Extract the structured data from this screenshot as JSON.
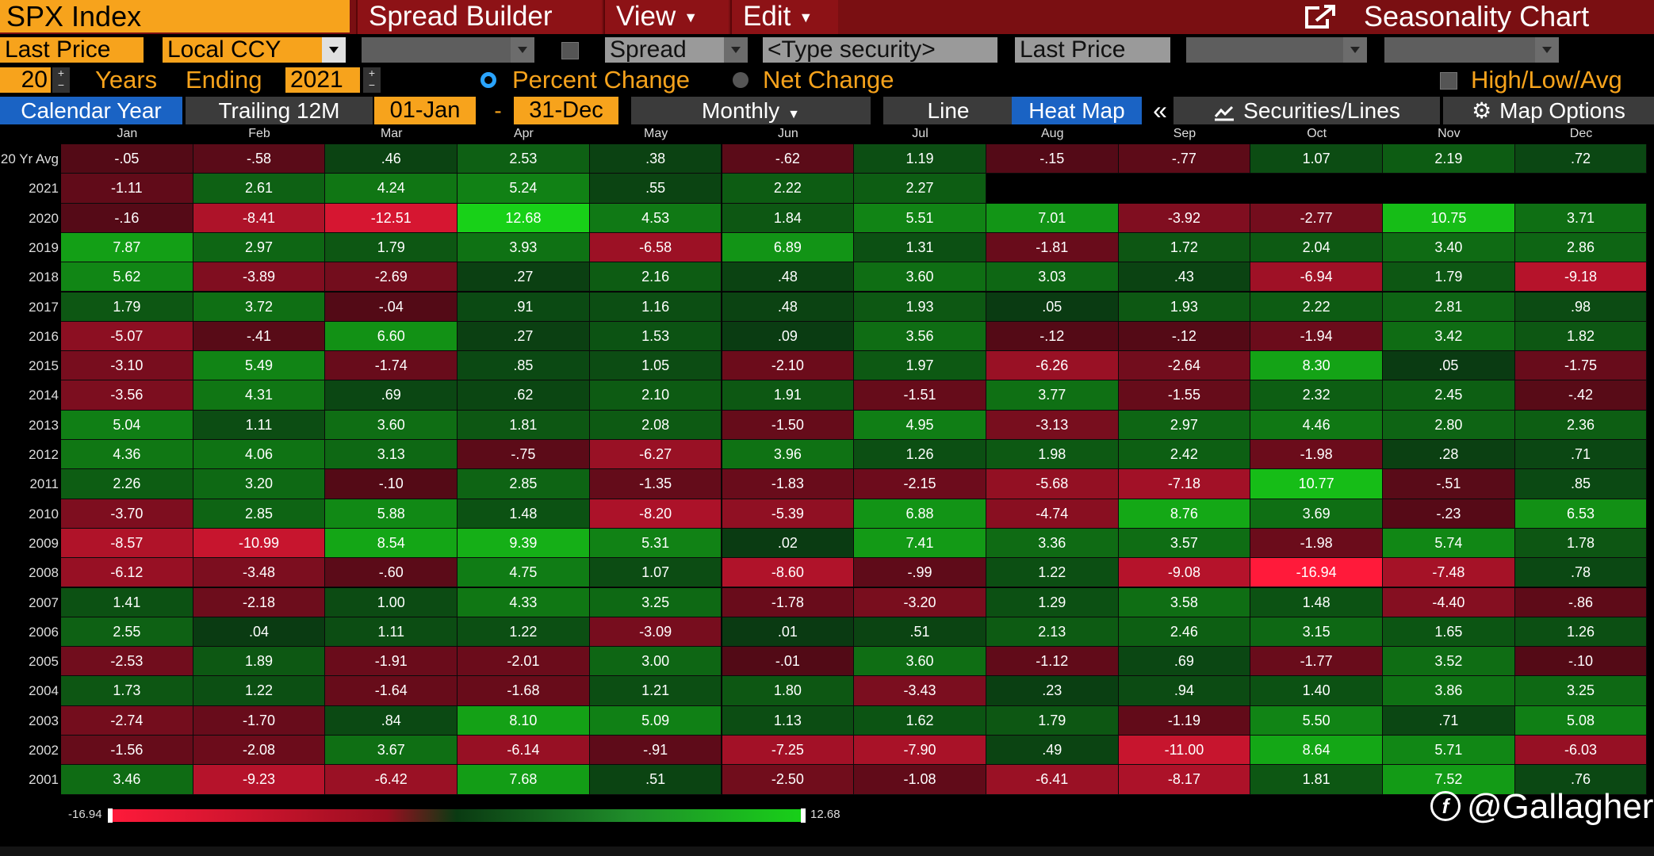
{
  "title_bar": {
    "ticker": "SPX Index",
    "menus": [
      "Spread Builder",
      "View",
      "Edit"
    ],
    "chart_title": "Seasonality Chart",
    "popout_icon": "popout-icon"
  },
  "row2": {
    "price_field": "Last Price",
    "currency": "Local CCY",
    "spread_label": "Spread",
    "security_placeholder": "<Type security>",
    "second_price_field": "Last Price"
  },
  "row3": {
    "years": "20",
    "years_label": "Years",
    "ending_label": "Ending",
    "end_year": "2021",
    "percent_change": "Percent Change",
    "net_change": "Net Change",
    "high_low_avg": "High/Low/Avg"
  },
  "tabs": {
    "calendar_year": "Calendar Year",
    "trailing_12m": "Trailing 12M",
    "start_date": "01-Jan",
    "dash": "-",
    "end_date": "31-Dec",
    "monthly": "Monthly",
    "line": "Line",
    "heat_map": "Heat Map",
    "collapse": "«",
    "securities_lines": "Securities/Lines",
    "map_options": "Map Options"
  },
  "heatmap": {
    "months": [
      "Jan",
      "Feb",
      "Mar",
      "Apr",
      "May",
      "Jun",
      "Jul",
      "Aug",
      "Sep",
      "Oct",
      "Nov",
      "Dec"
    ],
    "rows": [
      {
        "label": "20 Yr Avg",
        "values": [
          "-.05",
          "-.58",
          ".46",
          "2.53",
          ".38",
          "-.62",
          "1.19",
          "-.15",
          "-.77",
          "1.07",
          "2.19",
          ".72"
        ]
      },
      {
        "label": "2021",
        "values": [
          "-1.11",
          "2.61",
          "4.24",
          "5.24",
          ".55",
          "2.22",
          "2.27",
          "",
          "",
          "",
          "",
          ""
        ]
      },
      {
        "label": "2020",
        "values": [
          "-.16",
          "-8.41",
          "-12.51",
          "12.68",
          "4.53",
          "1.84",
          "5.51",
          "7.01",
          "-3.92",
          "-2.77",
          "10.75",
          "3.71"
        ]
      },
      {
        "label": "2019",
        "values": [
          "7.87",
          "2.97",
          "1.79",
          "3.93",
          "-6.58",
          "6.89",
          "1.31",
          "-1.81",
          "1.72",
          "2.04",
          "3.40",
          "2.86"
        ]
      },
      {
        "label": "2018",
        "values": [
          "5.62",
          "-3.89",
          "-2.69",
          ".27",
          "2.16",
          ".48",
          "3.60",
          "3.03",
          ".43",
          "-6.94",
          "1.79",
          "-9.18"
        ]
      },
      {
        "label": "2017",
        "values": [
          "1.79",
          "3.72",
          "-.04",
          ".91",
          "1.16",
          ".48",
          "1.93",
          ".05",
          "1.93",
          "2.22",
          "2.81",
          ".98"
        ]
      },
      {
        "label": "2016",
        "values": [
          "-5.07",
          "-.41",
          "6.60",
          ".27",
          "1.53",
          ".09",
          "3.56",
          "-.12",
          "-.12",
          "-1.94",
          "3.42",
          "1.82"
        ]
      },
      {
        "label": "2015",
        "values": [
          "-3.10",
          "5.49",
          "-1.74",
          ".85",
          "1.05",
          "-2.10",
          "1.97",
          "-6.26",
          "-2.64",
          "8.30",
          ".05",
          "-1.75"
        ]
      },
      {
        "label": "2014",
        "values": [
          "-3.56",
          "4.31",
          ".69",
          ".62",
          "2.10",
          "1.91",
          "-1.51",
          "3.77",
          "-1.55",
          "2.32",
          "2.45",
          "-.42"
        ]
      },
      {
        "label": "2013",
        "values": [
          "5.04",
          "1.11",
          "3.60",
          "1.81",
          "2.08",
          "-1.50",
          "4.95",
          "-3.13",
          "2.97",
          "4.46",
          "2.80",
          "2.36"
        ]
      },
      {
        "label": "2012",
        "values": [
          "4.36",
          "4.06",
          "3.13",
          "-.75",
          "-6.27",
          "3.96",
          "1.26",
          "1.98",
          "2.42",
          "-1.98",
          ".28",
          ".71"
        ]
      },
      {
        "label": "2011",
        "values": [
          "2.26",
          "3.20",
          "-.10",
          "2.85",
          "-1.35",
          "-1.83",
          "-2.15",
          "-5.68",
          "-7.18",
          "10.77",
          "-.51",
          ".85"
        ]
      },
      {
        "label": "2010",
        "values": [
          "-3.70",
          "2.85",
          "5.88",
          "1.48",
          "-8.20",
          "-5.39",
          "6.88",
          "-4.74",
          "8.76",
          "3.69",
          "-.23",
          "6.53"
        ]
      },
      {
        "label": "2009",
        "values": [
          "-8.57",
          "-10.99",
          "8.54",
          "9.39",
          "5.31",
          ".02",
          "7.41",
          "3.36",
          "3.57",
          "-1.98",
          "5.74",
          "1.78"
        ]
      },
      {
        "label": "2008",
        "values": [
          "-6.12",
          "-3.48",
          "-.60",
          "4.75",
          "1.07",
          "-8.60",
          "-.99",
          "1.22",
          "-9.08",
          "-16.94",
          "-7.48",
          ".78"
        ]
      },
      {
        "label": "2007",
        "values": [
          "1.41",
          "-2.18",
          "1.00",
          "4.33",
          "3.25",
          "-1.78",
          "-3.20",
          "1.29",
          "3.58",
          "1.48",
          "-4.40",
          "-.86"
        ]
      },
      {
        "label": "2006",
        "values": [
          "2.55",
          ".04",
          "1.11",
          "1.22",
          "-3.09",
          ".01",
          ".51",
          "2.13",
          "2.46",
          "3.15",
          "1.65",
          "1.26"
        ]
      },
      {
        "label": "2005",
        "values": [
          "-2.53",
          "1.89",
          "-1.91",
          "-2.01",
          "3.00",
          "-.01",
          "3.60",
          "-1.12",
          ".69",
          "-1.77",
          "3.52",
          "-.10"
        ]
      },
      {
        "label": "2004",
        "values": [
          "1.73",
          "1.22",
          "-1.64",
          "-1.68",
          "1.21",
          "1.80",
          "-3.43",
          ".23",
          ".94",
          "1.40",
          "3.86",
          "3.25"
        ]
      },
      {
        "label": "2003",
        "values": [
          "-2.74",
          "-1.70",
          ".84",
          "8.10",
          "5.09",
          "1.13",
          "1.62",
          "1.79",
          "-1.19",
          "5.50",
          ".71",
          "5.08"
        ]
      },
      {
        "label": "2002",
        "values": [
          "-1.56",
          "-2.08",
          "3.67",
          "-6.14",
          "-.91",
          "-7.25",
          "-7.90",
          ".49",
          "-11.00",
          "8.64",
          "5.71",
          "-6.03"
        ]
      },
      {
        "label": "2001",
        "values": [
          "3.46",
          "-9.23",
          "-6.42",
          "7.68",
          ".51",
          "-2.50",
          "-1.08",
          "-6.41",
          "-8.17",
          "1.81",
          "7.52",
          ".76"
        ]
      }
    ]
  },
  "legend": {
    "min": "-16.94",
    "max": "12.68"
  },
  "watermark": "@Gallagher",
  "colors": {
    "orange": "#f7a31c",
    "title_red": "#7a0f12",
    "blue": "#1a63c4",
    "neg_max": "#ff1a3a",
    "pos_max": "#18d118"
  }
}
